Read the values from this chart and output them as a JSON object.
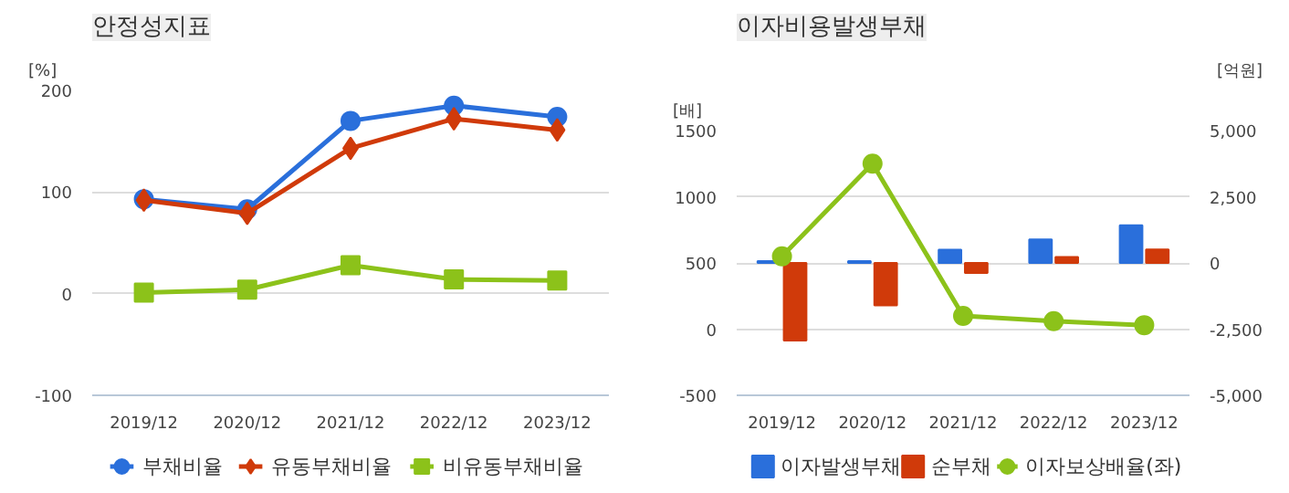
{
  "chart_data": [
    {
      "type": "line",
      "title": "안정성지표",
      "ylabel": "[%]",
      "categories": [
        "2019/12",
        "2020/12",
        "2021/12",
        "2022/12",
        "2023/12"
      ],
      "ylim": [
        -100,
        200
      ],
      "yticks": [
        -100,
        0,
        100,
        200
      ],
      "grid": "y",
      "legend": "bottom",
      "series": [
        {
          "name": "부채비율",
          "color": "#2a6fdb",
          "marker": "circle",
          "values": [
            93,
            83,
            170,
            185,
            174
          ]
        },
        {
          "name": "유동부채비율",
          "color": "#d03a0a",
          "marker": "diamond",
          "values": [
            92,
            79,
            143,
            172,
            161
          ]
        },
        {
          "name": "비유동부채비율",
          "color": "#8cc21a",
          "marker": "square",
          "values": [
            1,
            4,
            28,
            14,
            13
          ]
        }
      ]
    },
    {
      "type": "bar",
      "title": "이자비용발생부채",
      "ylabel": "[배]",
      "y2label": "[억원]",
      "categories": [
        "2019/12",
        "2020/12",
        "2021/12",
        "2022/12",
        "2023/12"
      ],
      "ylim": [
        -500,
        1500
      ],
      "yticks": [
        -500,
        0,
        500,
        1000,
        1500
      ],
      "y2lim": [
        -5000,
        5000
      ],
      "y2ticks": [
        {
          "value": -5000,
          "label": "-5,000"
        },
        {
          "value": -2500,
          "label": "-2,500"
        },
        {
          "value": 0,
          "label": "0"
        },
        {
          "value": 2500,
          "label": "2,500"
        },
        {
          "value": 5000,
          "label": "5,000"
        }
      ],
      "grid": "y",
      "legend": "bottom",
      "series": [
        {
          "name": "이자발생부채",
          "color": "#2a6fdb",
          "axis": "y2",
          "values": [
            70,
            70,
            500,
            890,
            1420
          ]
        },
        {
          "name": "순부채",
          "color": "#d03a0a",
          "axis": "y2",
          "values": [
            -2930,
            -1600,
            -380,
            220,
            510
          ]
        },
        {
          "name": "이자보상배율(좌)",
          "type": "line",
          "color": "#8cc21a",
          "marker": "circle",
          "values": [
            550,
            1250,
            100,
            60,
            30
          ]
        }
      ]
    }
  ]
}
